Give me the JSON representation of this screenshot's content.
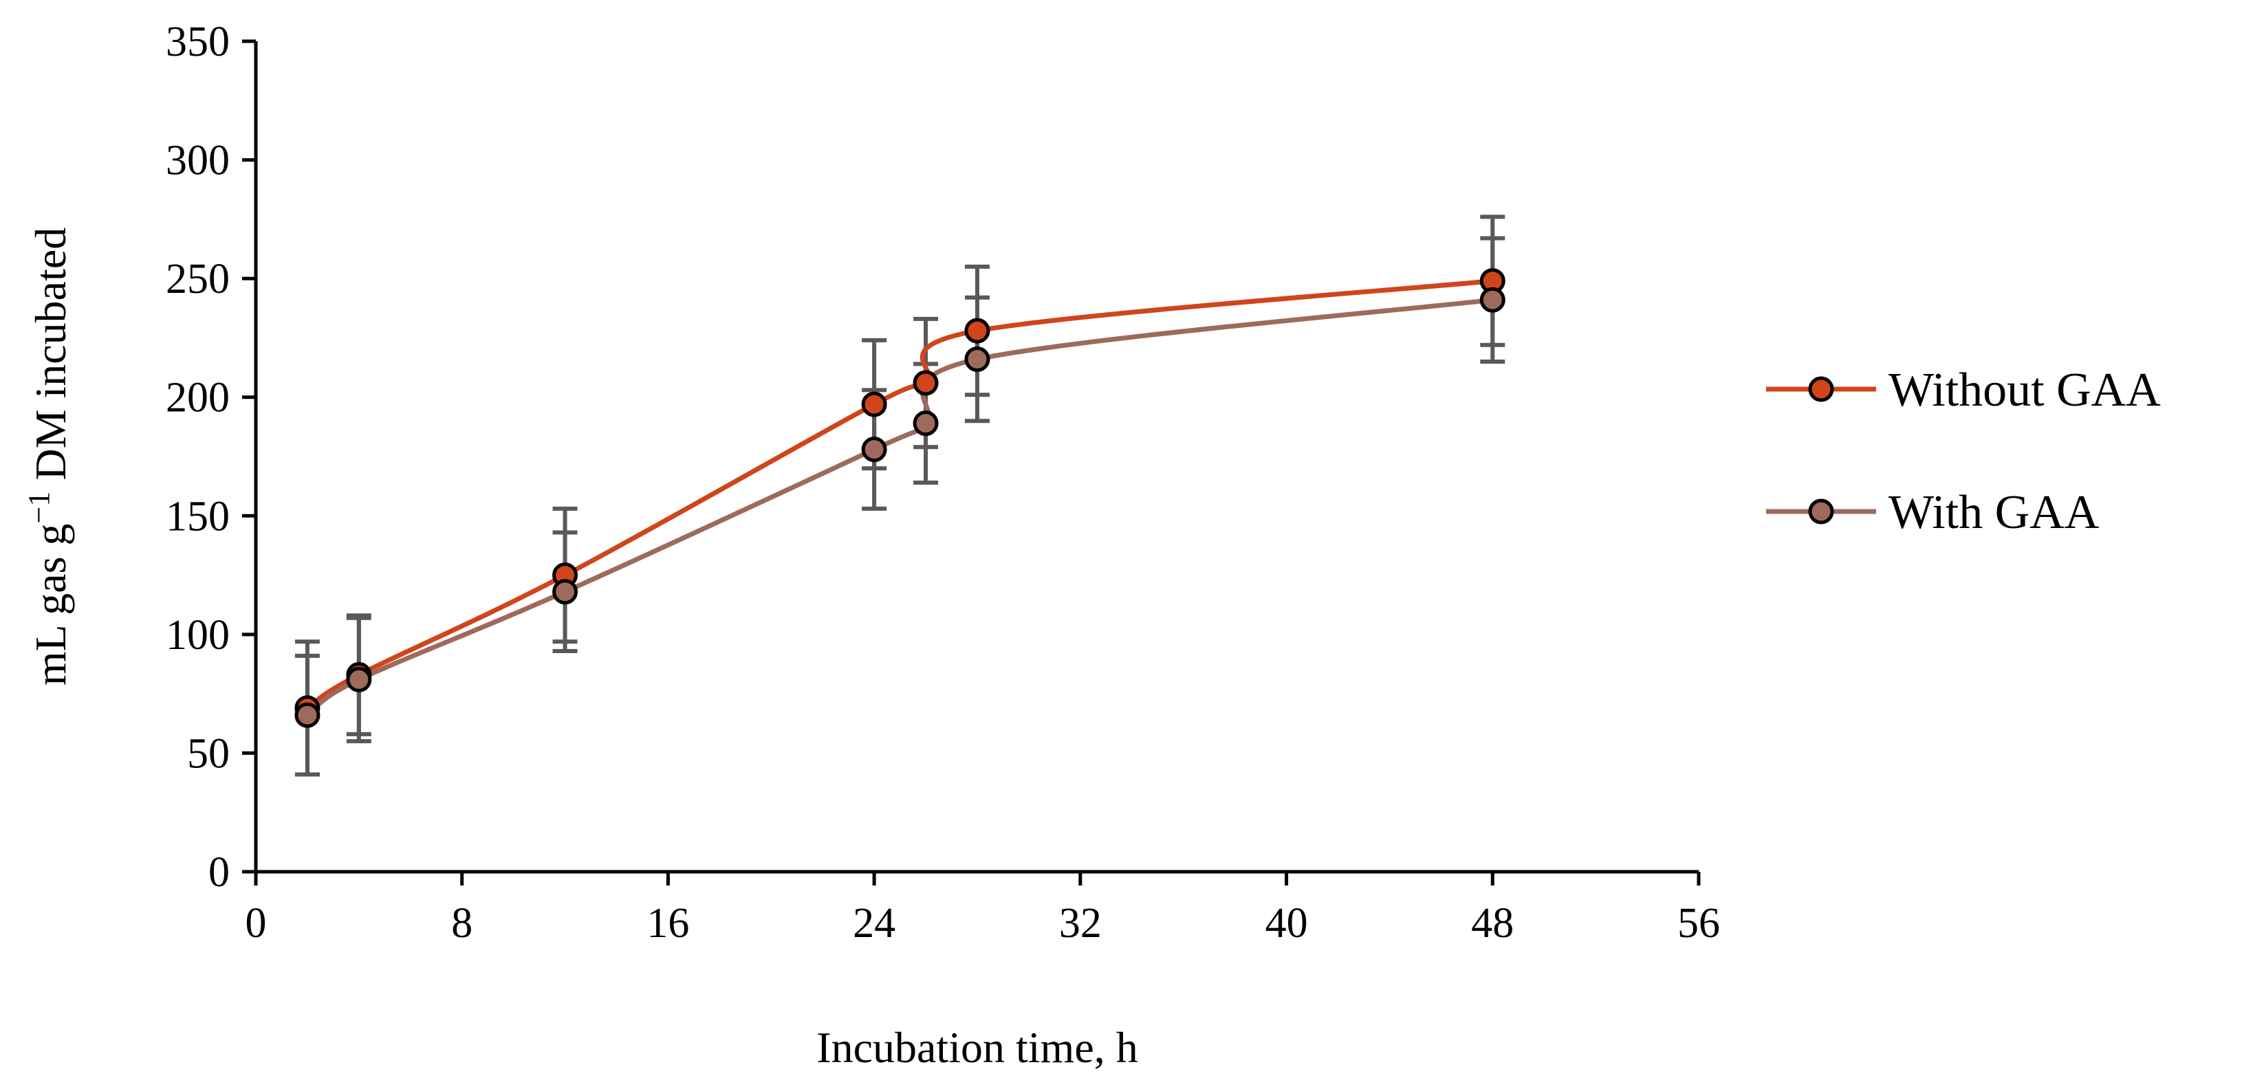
{
  "chart_data": {
    "type": "line",
    "title": "",
    "xlabel": "Incubation time, h",
    "ylabel_main": "mL gas g",
    "ylabel_sup": "−1",
    "ylabel_rest": " DM incubated",
    "xlim": [
      0,
      56
    ],
    "ylim": [
      0,
      350
    ],
    "xticks": [
      "0",
      "8",
      "16",
      "24",
      "32",
      "40",
      "48",
      "56"
    ],
    "yticks": [
      "0",
      "50",
      "100",
      "150",
      "200",
      "250",
      "300",
      "350"
    ],
    "grid": false,
    "legend_position": "right",
    "x": [
      2,
      4,
      12,
      24,
      26,
      28,
      48
    ],
    "series": [
      {
        "name": "Without GAA",
        "color": "#D0451B",
        "values": [
          69,
          83,
          125,
          197,
          206,
          228,
          249
        ],
        "error": [
          28,
          25,
          28,
          27,
          27,
          27,
          27
        ]
      },
      {
        "name": "With GAA",
        "color": "#9E6A5C",
        "values": [
          66,
          81,
          118,
          178,
          189,
          216,
          241
        ],
        "error": [
          25,
          26,
          25,
          25,
          25,
          26,
          26
        ]
      }
    ],
    "error_bar_color": "#595959"
  }
}
